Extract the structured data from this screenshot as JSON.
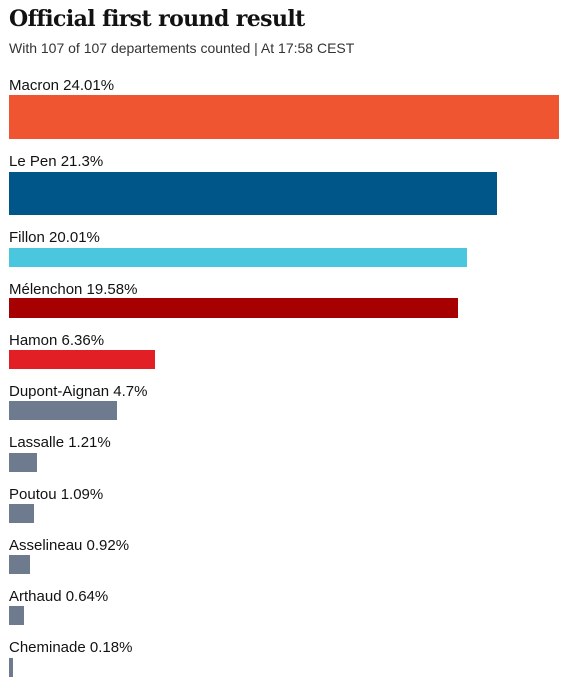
{
  "header": {
    "title": "Official first round result",
    "subtitle": "With 107 of 107 departements counted | At 17:58 CEST"
  },
  "chart_data": {
    "type": "bar",
    "orientation": "horizontal",
    "title": "Official first round result",
    "subtitle": "With 107 of 107 departements counted | At 17:58 CEST",
    "xlabel": "",
    "ylabel": "",
    "xlim": [
      0,
      24.01
    ],
    "grid": false,
    "legend": "none",
    "categories": [
      "Macron",
      "Le Pen",
      "Fillon",
      "Mélenchon",
      "Hamon",
      "Dupont-Aignan",
      "Lassalle",
      "Poutou",
      "Asselineau",
      "Arthaud",
      "Cheminade"
    ],
    "values": [
      24.01,
      21.3,
      20.01,
      19.58,
      6.36,
      4.7,
      1.21,
      1.09,
      0.92,
      0.64,
      0.18
    ],
    "labels": [
      "Macron 24.01%",
      "Le Pen 21.3%",
      "Fillon 20.01%",
      "Mélenchon 19.58%",
      "Hamon 6.36%",
      "Dupont-Aignan 4.7%",
      "Lassalle 1.21%",
      "Poutou 1.09%",
      "Asselineau 0.92%",
      "Arthaud 0.64%",
      "Cheminade 0.18%"
    ],
    "colors": [
      "#f05532",
      "#005689",
      "#4bc6df",
      "#a60000",
      "#e31f26",
      "#6e7b8e",
      "#6e7b8e",
      "#6e7b8e",
      "#6e7b8e",
      "#6e7b8e",
      "#6e7b8e"
    ]
  }
}
